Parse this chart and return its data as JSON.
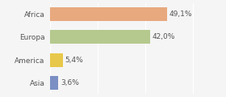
{
  "categories": [
    "Africa",
    "Europa",
    "America",
    "Asia"
  ],
  "values": [
    49.1,
    42.0,
    5.4,
    3.6
  ],
  "labels": [
    "49,1%",
    "42,0%",
    "5,4%",
    "3,6%"
  ],
  "bar_colors": [
    "#e8a97e",
    "#b5c98e",
    "#e8c84a",
    "#7b8fc4"
  ],
  "background_color": "#f5f5f5",
  "xlim": [
    0,
    72
  ],
  "bar_height": 0.6,
  "label_fontsize": 6.5,
  "tick_fontsize": 6.5
}
